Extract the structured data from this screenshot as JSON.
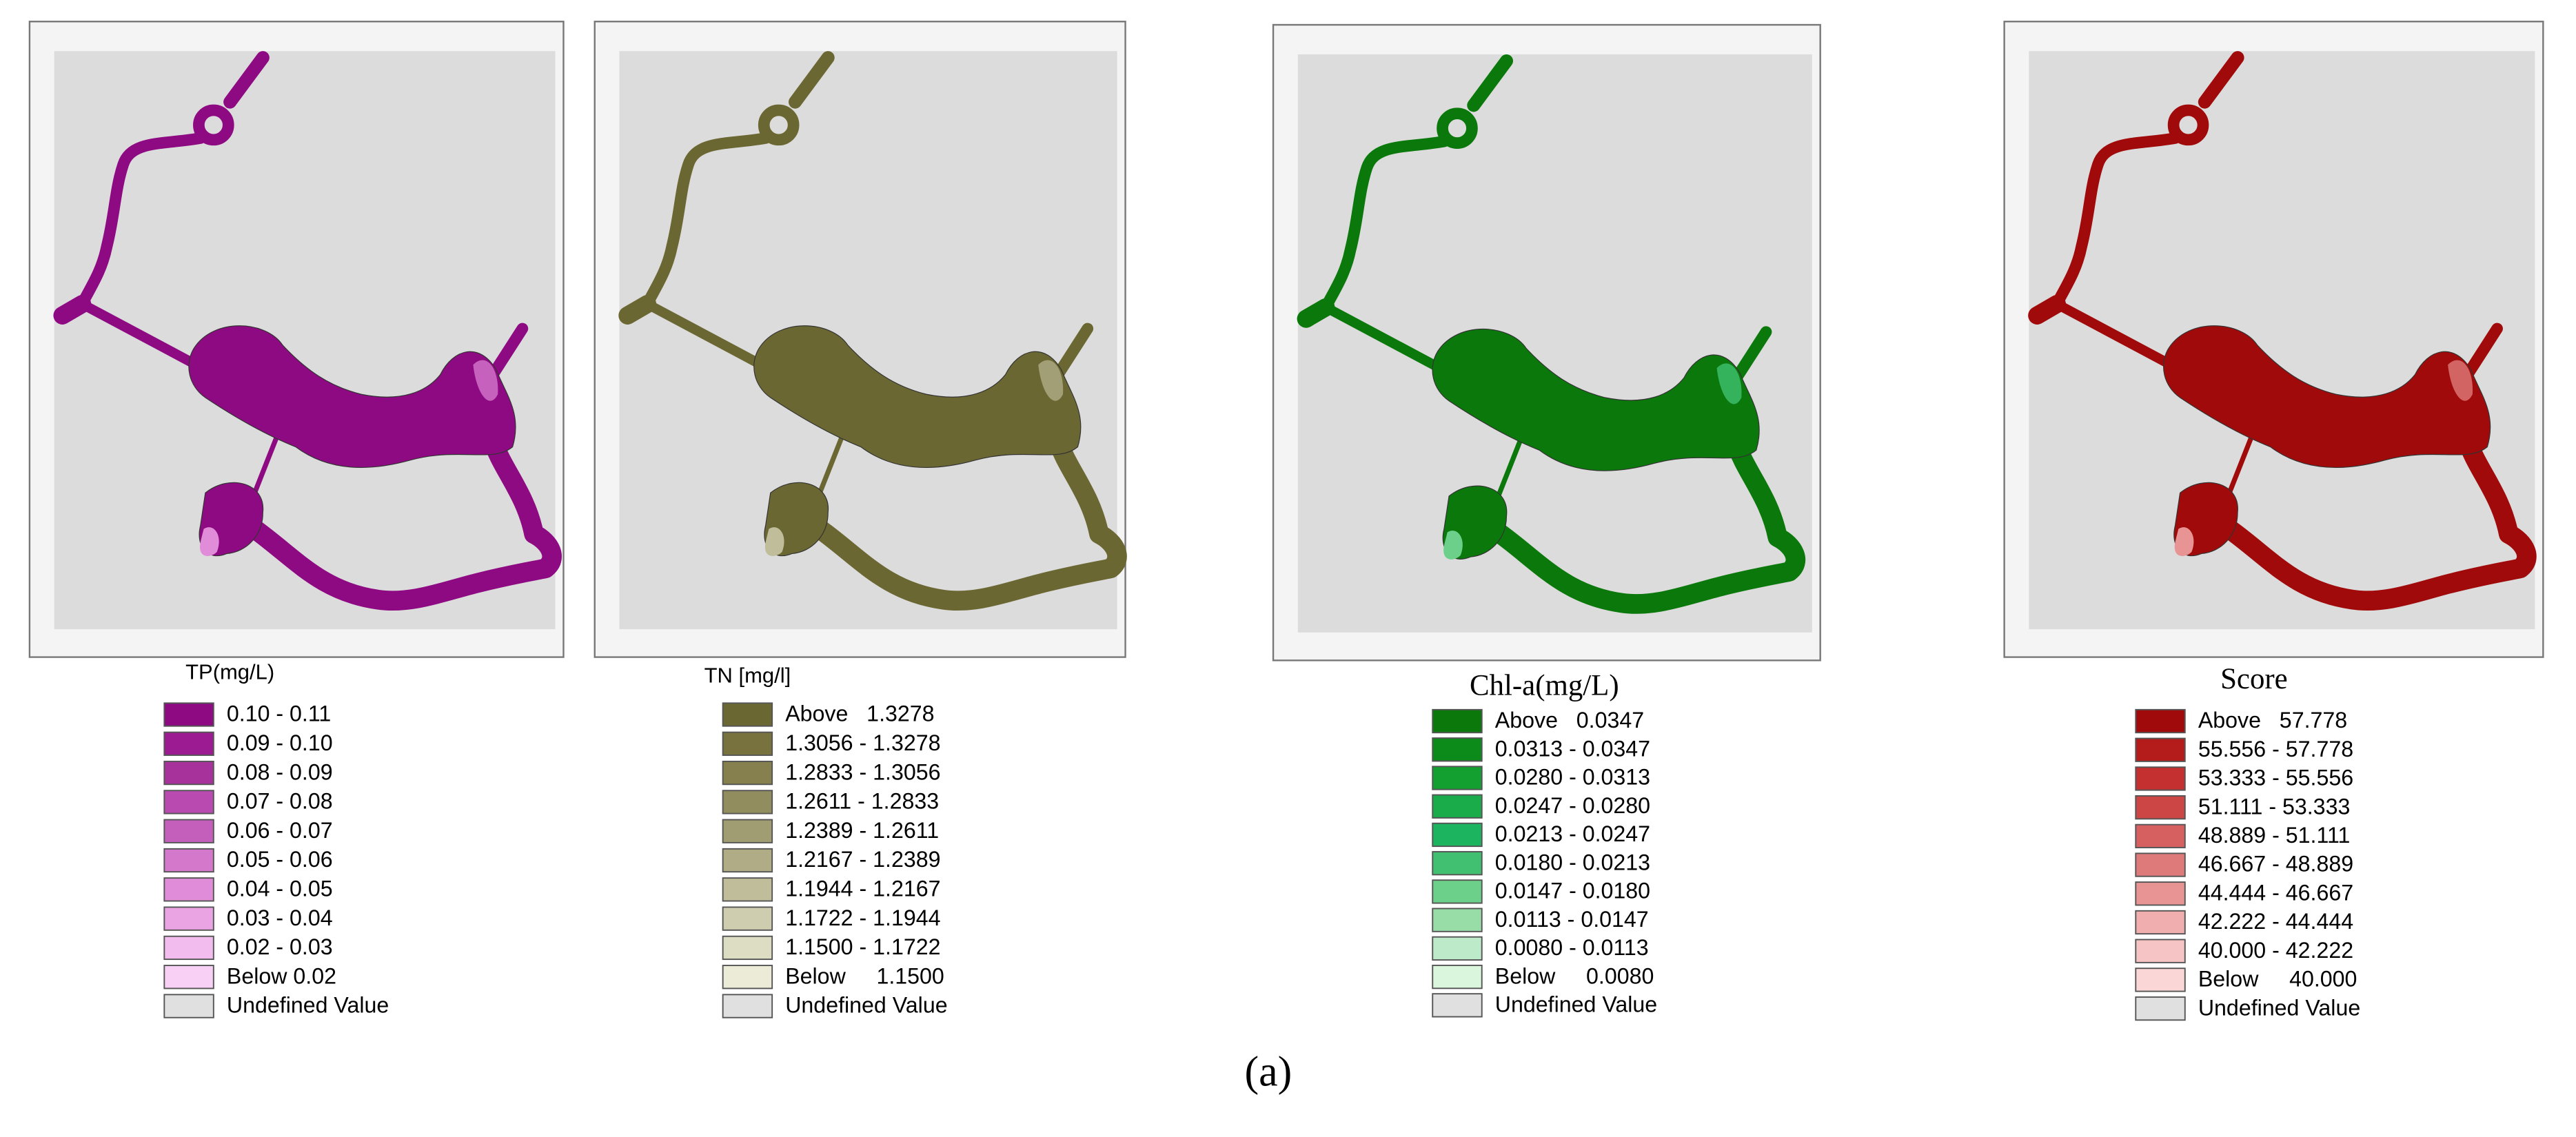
{
  "panels": [
    {
      "title": "TP(mg/L)",
      "legend": [
        {
          "label": "0.10 - 0.11",
          "color": "#8e0a82"
        },
        {
          "label": "0.09 - 0.10",
          "color": "#9c1a92"
        },
        {
          "label": "0.08 - 0.09",
          "color": "#a8329c"
        },
        {
          "label": "0.07 - 0.08",
          "color": "#b84ab0"
        },
        {
          "label": "0.06 - 0.07",
          "color": "#c460bc"
        },
        {
          "label": "0.05 - 0.06",
          "color": "#d478cc"
        },
        {
          "label": "0.04 - 0.05",
          "color": "#e08cd8"
        },
        {
          "label": "0.03 - 0.04",
          "color": "#eaa4e4"
        },
        {
          "label": "0.02 - 0.03",
          "color": "#f2bcee"
        },
        {
          "label": "Below 0.02",
          "color": "#f8d0f6"
        },
        {
          "label": "Undefined Value",
          "color": "#e0e0e0"
        }
      ]
    },
    {
      "title": "TN [mg/l]",
      "legend": [
        {
          "label": "Above   1.3278",
          "color": "#6b6733"
        },
        {
          "label": "1.3056 - 1.3278",
          "color": "#77723e"
        },
        {
          "label": "1.2833 - 1.3056",
          "color": "#85804e"
        },
        {
          "label": "1.2611 - 1.2833",
          "color": "#928d5e"
        },
        {
          "label": "1.2389 - 1.2611",
          "color": "#a19d72"
        },
        {
          "label": "1.2167 - 1.2389",
          "color": "#b0ad86"
        },
        {
          "label": "1.1944 - 1.2167",
          "color": "#c0bd9a"
        },
        {
          "label": "1.1722 - 1.1944",
          "color": "#cfcdb0"
        },
        {
          "label": "1.1500 - 1.1722",
          "color": "#ddddc4"
        },
        {
          "label": "Below     1.1500",
          "color": "#ebebd8"
        },
        {
          "label": "Undefined Value",
          "color": "#e0e0e0"
        }
      ]
    },
    {
      "title": "Chl-a(mg/L)",
      "legend": [
        {
          "label": "Above   0.0347",
          "color": "#0a780a"
        },
        {
          "label": "0.0313 - 0.0347",
          "color": "#0c8a1a"
        },
        {
          "label": "0.0280 - 0.0313",
          "color": "#14a030"
        },
        {
          "label": "0.0247 - 0.0280",
          "color": "#1aac4a"
        },
        {
          "label": "0.0213 - 0.0247",
          "color": "#1cb45e"
        },
        {
          "label": "0.0180 - 0.0213",
          "color": "#40c070"
        },
        {
          "label": "0.0147 - 0.0180",
          "color": "#6ccf8a"
        },
        {
          "label": "0.0113 - 0.0147",
          "color": "#98dca8"
        },
        {
          "label": "0.0080 - 0.0113",
          "color": "#bdeac8"
        },
        {
          "label": "Below     0.0080",
          "color": "#daf6dc"
        },
        {
          "label": "Undefined Value",
          "color": "#e0e0e0"
        }
      ]
    },
    {
      "title": "Score",
      "legend": [
        {
          "label": "Above   57.778",
          "color": "#a00a0a"
        },
        {
          "label": "55.556 - 57.778",
          "color": "#b41c1c"
        },
        {
          "label": "53.333 - 55.556",
          "color": "#c43030"
        },
        {
          "label": "51.111 - 53.333",
          "color": "#cc4646"
        },
        {
          "label": "48.889 - 51.111",
          "color": "#d66060"
        },
        {
          "label": "46.667 - 48.889",
          "color": "#de7a7a"
        },
        {
          "label": "44.444 - 46.667",
          "color": "#e89494"
        },
        {
          "label": "42.222 - 44.444",
          "color": "#f0aeae"
        },
        {
          "label": "40.000 - 42.222",
          "color": "#f6c4c4"
        },
        {
          "label": "Below     40.000",
          "color": "#fad6d6"
        },
        {
          "label": "Undefined Value",
          "color": "#e0e0e0"
        }
      ]
    }
  ],
  "caption": "(a)"
}
